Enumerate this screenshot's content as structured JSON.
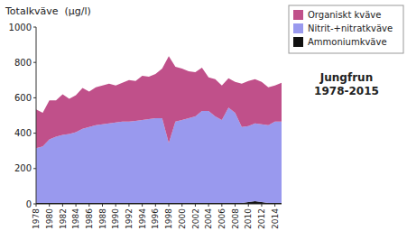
{
  "chart_data": {
    "type": "area",
    "stacked": true,
    "title": "Jungfrun\n1978-2015",
    "y_label": "Totalkväve  (µg/l)",
    "x": [
      1978,
      1979,
      1980,
      1981,
      1982,
      1983,
      1984,
      1985,
      1986,
      1987,
      1988,
      1989,
      1990,
      1991,
      1992,
      1993,
      1994,
      1995,
      1996,
      1997,
      1998,
      1999,
      2000,
      2001,
      2002,
      2003,
      2004,
      2005,
      2006,
      2007,
      2008,
      2009,
      2010,
      2011,
      2012,
      2013,
      2014,
      2015
    ],
    "series": [
      {
        "name": "Ammoniumkväve",
        "color": "#111111",
        "values": [
          5,
          5,
          5,
          5,
          5,
          5,
          5,
          5,
          5,
          5,
          5,
          5,
          5,
          5,
          5,
          5,
          5,
          5,
          5,
          5,
          5,
          5,
          5,
          5,
          5,
          5,
          5,
          5,
          5,
          5,
          5,
          5,
          10,
          15,
          10,
          5,
          5,
          5
        ]
      },
      {
        "name": "Nitrit-+nitratkväve",
        "color": "#9999ee",
        "values": [
          310,
          320,
          360,
          375,
          385,
          390,
          400,
          420,
          430,
          440,
          445,
          450,
          455,
          460,
          460,
          465,
          470,
          475,
          480,
          480,
          340,
          460,
          470,
          480,
          490,
          520,
          520,
          490,
          470,
          540,
          510,
          430,
          430,
          440,
          440,
          440,
          460,
          460
        ]
      },
      {
        "name": "Organiskt kväve",
        "color": "#c0508a",
        "values": [
          220,
          190,
          220,
          205,
          230,
          200,
          210,
          230,
          200,
          215,
          220,
          225,
          210,
          220,
          235,
          225,
          250,
          240,
          250,
          280,
          490,
          310,
          290,
          265,
          250,
          245,
          190,
          210,
          195,
          165,
          175,
          245,
          255,
          250,
          240,
          215,
          205,
          220
        ]
      }
    ],
    "xlim": [
      1978,
      2015
    ],
    "xticks": [
      1978,
      1980,
      1982,
      1984,
      1986,
      1988,
      1990,
      1992,
      1994,
      1996,
      1998,
      2000,
      2002,
      2004,
      2006,
      2008,
      2010,
      2012,
      2014
    ],
    "ylim": [
      0,
      1000
    ],
    "yticks": [
      0,
      200,
      400,
      600,
      800,
      1000
    ],
    "grid": false,
    "legend": "right"
  }
}
